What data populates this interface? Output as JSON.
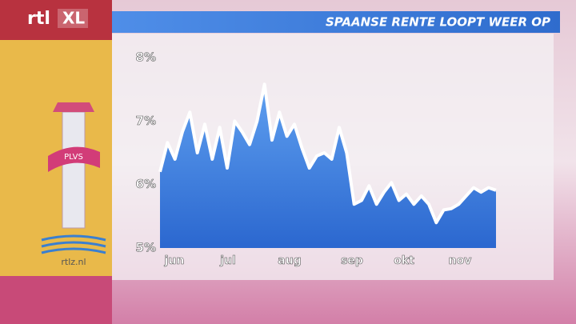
{
  "brand": "rtl",
  "brand_suffix": "XL",
  "site": "rtlz.nl",
  "chart_data": {
    "type": "line",
    "title": "SPAANSE RENTE LOOPT WEER OP",
    "x_labels": [
      "jun",
      "jul",
      "aug",
      "sep",
      "okt",
      "nov"
    ],
    "values": [
      6.2,
      6.66,
      6.4,
      6.83,
      7.14,
      6.5,
      6.95,
      6.4,
      6.9,
      6.26,
      7.0,
      6.83,
      6.63,
      7.0,
      7.58,
      6.7,
      7.14,
      6.76,
      6.95,
      6.58,
      6.26,
      6.45,
      6.5,
      6.4,
      6.9,
      6.5,
      5.69,
      5.75,
      5.98,
      5.69,
      5.88,
      6.03,
      5.75,
      5.85,
      5.69,
      5.82,
      5.69,
      5.4,
      5.6,
      5.62,
      5.69,
      5.82,
      5.95,
      5.88,
      5.95,
      5.91
    ],
    "color": "#ffffff",
    "fill_color": "#3d7fe0",
    "ylim": [
      5,
      8
    ],
    "yticks": [
      {
        "value": 5,
        "label": "5%"
      },
      {
        "value": 6,
        "label": "6%"
      },
      {
        "value": 7,
        "label": "7%"
      },
      {
        "value": 8,
        "label": "8%"
      }
    ]
  }
}
